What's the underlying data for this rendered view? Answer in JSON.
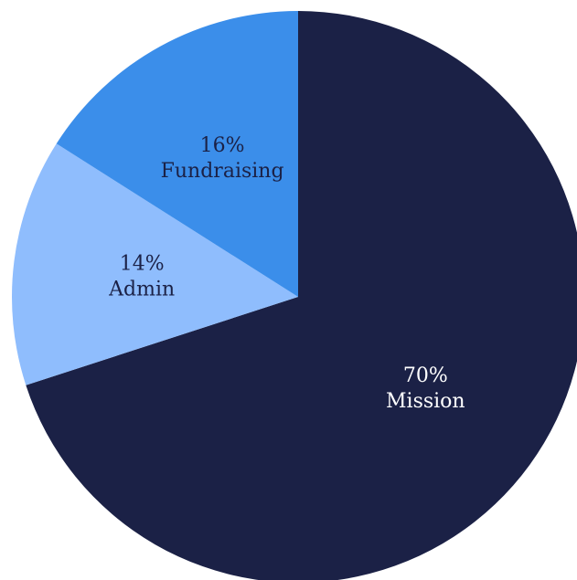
{
  "chart_data": {
    "type": "pie",
    "start_angle_deg": 0,
    "direction": "clockwise",
    "slices": [
      {
        "category": "Mission",
        "value": 70,
        "label": "70%",
        "color": "#1b2146",
        "text_color": "#ffffff"
      },
      {
        "category": "Admin",
        "value": 14,
        "label": "14%",
        "color": "#8fbdfd",
        "text_color": "#1b2146"
      },
      {
        "category": "Fundraising",
        "value": 16,
        "label": "16%",
        "color": "#3b8eea",
        "text_color": "#1b2146"
      }
    ]
  }
}
